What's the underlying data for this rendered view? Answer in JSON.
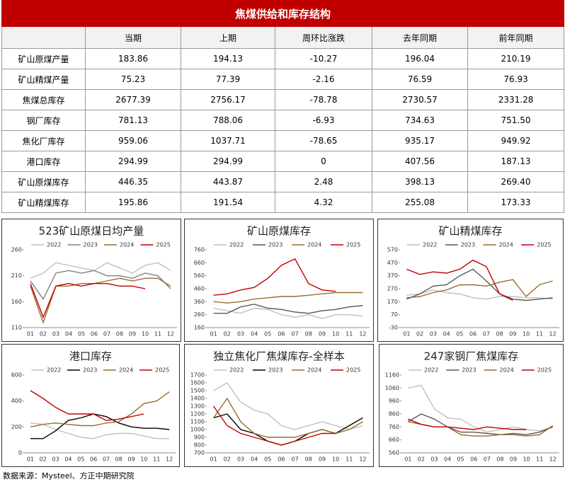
{
  "table": {
    "title": "焦煤供给和库存结构",
    "columns": [
      "当期",
      "上期",
      "周环比涨跌",
      "去年同期",
      "前年同期"
    ],
    "rows": [
      {
        "label": "矿山原煤产量",
        "current": "183.86",
        "previous": "194.13",
        "change": -10.27,
        "last_year": "196.04",
        "two_years_ago": "210.19"
      },
      {
        "label": "矿山精煤产量",
        "current": "75.23",
        "previous": "77.39",
        "change": -2.16,
        "last_year": "76.59",
        "two_years_ago": "76.93"
      },
      {
        "label": "焦煤总库存",
        "current": "2677.39",
        "previous": "2756.17",
        "change": -78.78,
        "last_year": "2730.57",
        "two_years_ago": "2331.28"
      },
      {
        "label": "钢厂库存",
        "current": "781.13",
        "previous": "788.06",
        "change": -6.93,
        "last_year": "734.63",
        "two_years_ago": "751.50"
      },
      {
        "label": "焦化厂库存",
        "current": "959.06",
        "previous": "1037.71",
        "change": -78.65,
        "last_year": "935.17",
        "two_years_ago": "949.92"
      },
      {
        "label": "港口库存",
        "current": "294.99",
        "previous": "294.99",
        "change": 0,
        "last_year": "407.56",
        "two_years_ago": "187.13"
      },
      {
        "label": "矿山原煤库存",
        "current": "446.35",
        "previous": "443.87",
        "change": 2.48,
        "last_year": "398.13",
        "two_years_ago": "269.40"
      },
      {
        "label": "矿山精煤库存",
        "current": "195.86",
        "previous": "191.54",
        "change": 4.32,
        "last_year": "255.08",
        "two_years_ago": "173.33"
      }
    ]
  },
  "chart_data": [
    {
      "type": "line",
      "title": "523矿山原煤日均产量",
      "categories": [
        "01",
        "02",
        "03",
        "04",
        "05",
        "06",
        "07",
        "08",
        "09",
        "10",
        "11",
        "12"
      ],
      "ylim": [
        110,
        260
      ],
      "yticks": [
        110,
        160,
        210,
        260
      ],
      "series": [
        {
          "name": "2022",
          "color": "#bfbfbf",
          "values": [
            205,
            215,
            235,
            230,
            225,
            220,
            235,
            225,
            215,
            230,
            235,
            220
          ]
        },
        {
          "name": "2023",
          "color": "#7f7f7f",
          "values": [
            200,
            165,
            215,
            220,
            215,
            220,
            210,
            210,
            205,
            215,
            210,
            185
          ]
        },
        {
          "name": "2024",
          "color": "#9c6b30",
          "values": [
            190,
            120,
            190,
            190,
            195,
            195,
            200,
            205,
            200,
            205,
            205,
            190
          ]
        },
        {
          "name": "2025",
          "color": "#c00000",
          "values": [
            195,
            130,
            190,
            195,
            190,
            195,
            195,
            190,
            190,
            185,
            null,
            null
          ]
        }
      ]
    },
    {
      "type": "line",
      "title": "矿山原煤库存",
      "categories": [
        "01",
        "02",
        "03",
        "04",
        "05",
        "06",
        "07",
        "08",
        "09",
        "10",
        "11",
        "12"
      ],
      "ylim": [
        160,
        760
      ],
      "yticks": [
        160,
        260,
        360,
        460,
        560,
        660,
        760
      ],
      "series": [
        {
          "name": "2022",
          "color": "#bfbfbf",
          "values": [
            310,
            290,
            270,
            310,
            300,
            260,
            240,
            260,
            230,
            260,
            260,
            250
          ]
        },
        {
          "name": "2023",
          "color": "#595959",
          "values": [
            270,
            270,
            320,
            340,
            310,
            300,
            280,
            270,
            290,
            300,
            320,
            330
          ]
        },
        {
          "name": "2024",
          "color": "#9c6b30",
          "values": [
            360,
            350,
            360,
            380,
            390,
            400,
            400,
            410,
            420,
            430,
            430,
            430
          ]
        },
        {
          "name": "2025",
          "color": "#c00000",
          "values": [
            410,
            420,
            450,
            470,
            540,
            640,
            690,
            500,
            450,
            440,
            null,
            null
          ]
        }
      ]
    },
    {
      "type": "line",
      "title": "矿山精煤库存",
      "categories": [
        "01",
        "02",
        "03",
        "04",
        "05",
        "06",
        "07",
        "08",
        "09",
        "10",
        "11",
        "12"
      ],
      "ylim": [
        -30,
        570
      ],
      "yticks": [
        -30,
        70,
        170,
        270,
        370,
        470,
        570
      ],
      "series": [
        {
          "name": "2022",
          "color": "#bfbfbf",
          "values": [
            220,
            230,
            260,
            240,
            230,
            200,
            190,
            210,
            210,
            200,
            200,
            190
          ]
        },
        {
          "name": "2023",
          "color": "#595959",
          "values": [
            190,
            230,
            290,
            300,
            370,
            420,
            330,
            230,
            190,
            180,
            190,
            200
          ]
        },
        {
          "name": "2024",
          "color": "#9c6b30",
          "values": [
            200,
            210,
            240,
            260,
            300,
            300,
            290,
            320,
            340,
            210,
            300,
            330
          ]
        },
        {
          "name": "2025",
          "color": "#c00000",
          "values": [
            420,
            380,
            400,
            390,
            420,
            490,
            440,
            230,
            180,
            null,
            null,
            null
          ]
        }
      ]
    },
    {
      "type": "line",
      "title": "港口库存",
      "categories": [
        "01",
        "02",
        "03",
        "04",
        "05",
        "06",
        "07",
        "08",
        "09",
        "10",
        "11",
        "12"
      ],
      "ylim": [
        0,
        600
      ],
      "yticks": [
        0,
        200,
        400,
        600
      ],
      "series": [
        {
          "name": "2022",
          "color": "#bfbfbf",
          "values": [
            230,
            220,
            180,
            150,
            120,
            110,
            140,
            150,
            150,
            130,
            110,
            110
          ]
        },
        {
          "name": "2023",
          "color": "#000000",
          "values": [
            110,
            110,
            170,
            250,
            270,
            300,
            280,
            230,
            200,
            190,
            190,
            180
          ]
        },
        {
          "name": "2024",
          "color": "#9c6b30",
          "values": [
            200,
            220,
            230,
            220,
            210,
            210,
            230,
            240,
            300,
            380,
            400,
            470
          ]
        },
        {
          "name": "2025",
          "color": "#c00000",
          "values": [
            480,
            420,
            350,
            300,
            300,
            300,
            250,
            260,
            280,
            300,
            null,
            null
          ]
        }
      ]
    },
    {
      "type": "line",
      "title": "独立焦化厂焦煤库存-全样本",
      "categories": [
        "01",
        "02",
        "03",
        "04",
        "05",
        "06",
        "07",
        "08",
        "09",
        "10",
        "11",
        "12"
      ],
      "ylim": [
        700,
        1700
      ],
      "yticks": [
        700,
        800,
        900,
        1000,
        1100,
        1200,
        1300,
        1400,
        1500,
        1600,
        1700
      ],
      "series": [
        {
          "name": "2022",
          "color": "#bfbfbf",
          "values": [
            1500,
            1600,
            1350,
            1250,
            1200,
            1050,
            1000,
            1050,
            1100,
            1050,
            1000,
            1050
          ]
        },
        {
          "name": "2023",
          "color": "#000000",
          "values": [
            1150,
            1200,
            1000,
            950,
            850,
            800,
            850,
            950,
            1000,
            950,
            1050,
            1150
          ]
        },
        {
          "name": "2024",
          "color": "#9c6b30",
          "values": [
            1150,
            1400,
            1100,
            950,
            900,
            900,
            900,
            950,
            1000,
            950,
            1000,
            1100
          ]
        },
        {
          "name": "2025",
          "color": "#c00000",
          "values": [
            1300,
            1050,
            950,
            900,
            850,
            800,
            850,
            900,
            950,
            950,
            null,
            null
          ]
        }
      ]
    },
    {
      "type": "line",
      "title": "247家钢厂焦煤库存",
      "categories": [
        "01",
        "02",
        "03",
        "04",
        "05",
        "06",
        "07",
        "08",
        "09",
        "10",
        "11",
        "12"
      ],
      "ylim": [
        560,
        1160
      ],
      "yticks": [
        560,
        660,
        760,
        860,
        960,
        1060,
        1160
      ],
      "series": [
        {
          "name": "2022",
          "color": "#bfbfbf",
          "values": [
            1060,
            1080,
            900,
            830,
            820,
            760,
            720,
            740,
            760,
            740,
            730,
            760
          ]
        },
        {
          "name": "2023",
          "color": "#595959",
          "values": [
            800,
            860,
            820,
            760,
            720,
            720,
            710,
            700,
            710,
            700,
            720,
            760
          ]
        },
        {
          "name": "2024",
          "color": "#9c6b30",
          "values": [
            800,
            780,
            760,
            760,
            700,
            690,
            690,
            700,
            700,
            690,
            700,
            770
          ]
        },
        {
          "name": "2025",
          "color": "#c00000",
          "values": [
            820,
            780,
            760,
            760,
            750,
            740,
            760,
            750,
            740,
            740,
            null,
            null
          ]
        }
      ]
    }
  ],
  "source": "数据来源：Mysteel、方正中期研究院"
}
